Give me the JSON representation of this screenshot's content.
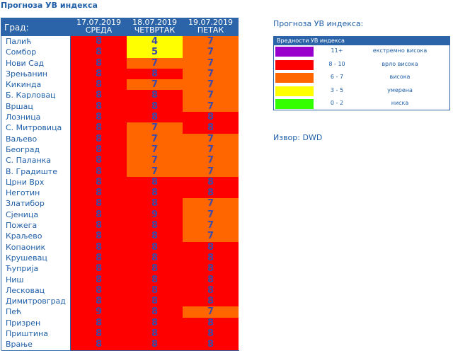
{
  "page_title": "Прогноза УВ индекса",
  "table": {
    "city_header": "Град:",
    "days": [
      {
        "date": "17.07.2019",
        "weekday": "СРЕДА"
      },
      {
        "date": "18.07.2019",
        "weekday": "ЧЕТВРТАК"
      },
      {
        "date": "19.07.2019",
        "weekday": "ПЕТАК"
      }
    ],
    "rows": [
      {
        "city": "Палић",
        "v": [
          8,
          4,
          7
        ]
      },
      {
        "city": "Сомбор",
        "v": [
          8,
          5,
          7
        ]
      },
      {
        "city": "Нови Сад",
        "v": [
          8,
          7,
          7
        ]
      },
      {
        "city": "Зрењанин",
        "v": [
          8,
          8,
          7
        ]
      },
      {
        "city": "Кикинда",
        "v": [
          8,
          7,
          7
        ]
      },
      {
        "city": "Б. Карловац",
        "v": [
          8,
          8,
          7
        ]
      },
      {
        "city": "Вршац",
        "v": [
          8,
          8,
          7
        ]
      },
      {
        "city": "Лозница",
        "v": [
          8,
          8,
          8
        ]
      },
      {
        "city": "С. Митровица",
        "v": [
          8,
          7,
          8
        ]
      },
      {
        "city": "Ваљево",
        "v": [
          8,
          7,
          7
        ]
      },
      {
        "city": "Београд",
        "v": [
          8,
          7,
          7
        ]
      },
      {
        "city": "С. Паланка",
        "v": [
          8,
          7,
          7
        ]
      },
      {
        "city": "В. Градиште",
        "v": [
          8,
          7,
          7
        ]
      },
      {
        "city": "Црни Врх",
        "v": [
          8,
          8,
          8
        ]
      },
      {
        "city": "Неготин",
        "v": [
          8,
          8,
          8
        ]
      },
      {
        "city": "Златибор",
        "v": [
          8,
          8,
          7
        ]
      },
      {
        "city": "Сјеница",
        "v": [
          8,
          9,
          7
        ]
      },
      {
        "city": "Пожега",
        "v": [
          8,
          8,
          7
        ]
      },
      {
        "city": "Краљево",
        "v": [
          8,
          8,
          7
        ]
      },
      {
        "city": "Копаоник",
        "v": [
          8,
          8,
          8
        ]
      },
      {
        "city": "Крушевац",
        "v": [
          8,
          8,
          8
        ]
      },
      {
        "city": "Ћуприја",
        "v": [
          8,
          8,
          8
        ]
      },
      {
        "city": "Ниш",
        "v": [
          8,
          8,
          8
        ]
      },
      {
        "city": "Лесковац",
        "v": [
          8,
          8,
          8
        ]
      },
      {
        "city": "Димитровград",
        "v": [
          8,
          8,
          8
        ]
      },
      {
        "city": "Пећ",
        "v": [
          9,
          8,
          7
        ]
      },
      {
        "city": "Призрен",
        "v": [
          8,
          8,
          8
        ]
      },
      {
        "city": "Приштина",
        "v": [
          8,
          8,
          8
        ]
      },
      {
        "city": "Врање",
        "v": [
          8,
          8,
          8
        ]
      }
    ]
  },
  "legend": {
    "title": "Прогноза УВ индекса:",
    "header": "Вредности УВ индекса",
    "items": [
      {
        "range": "11+",
        "desc": "екстремно висока",
        "color": "#9900cc"
      },
      {
        "range": "8 - 10",
        "desc": "врло висока",
        "color": "#ff0000"
      },
      {
        "range": "6 - 7",
        "desc": "висока",
        "color": "#ff6600"
      },
      {
        "range": "3 - 5",
        "desc": "умерена",
        "color": "#ffff00"
      },
      {
        "range": "0 - 2",
        "desc": "ниска",
        "color": "#33ff00"
      }
    ]
  },
  "source": "Извор: DWD",
  "colors": {
    "header_bg": "#2b64a8",
    "very_high": "#ff0000",
    "high": "#ff6600",
    "moderate": "#ffff00"
  }
}
